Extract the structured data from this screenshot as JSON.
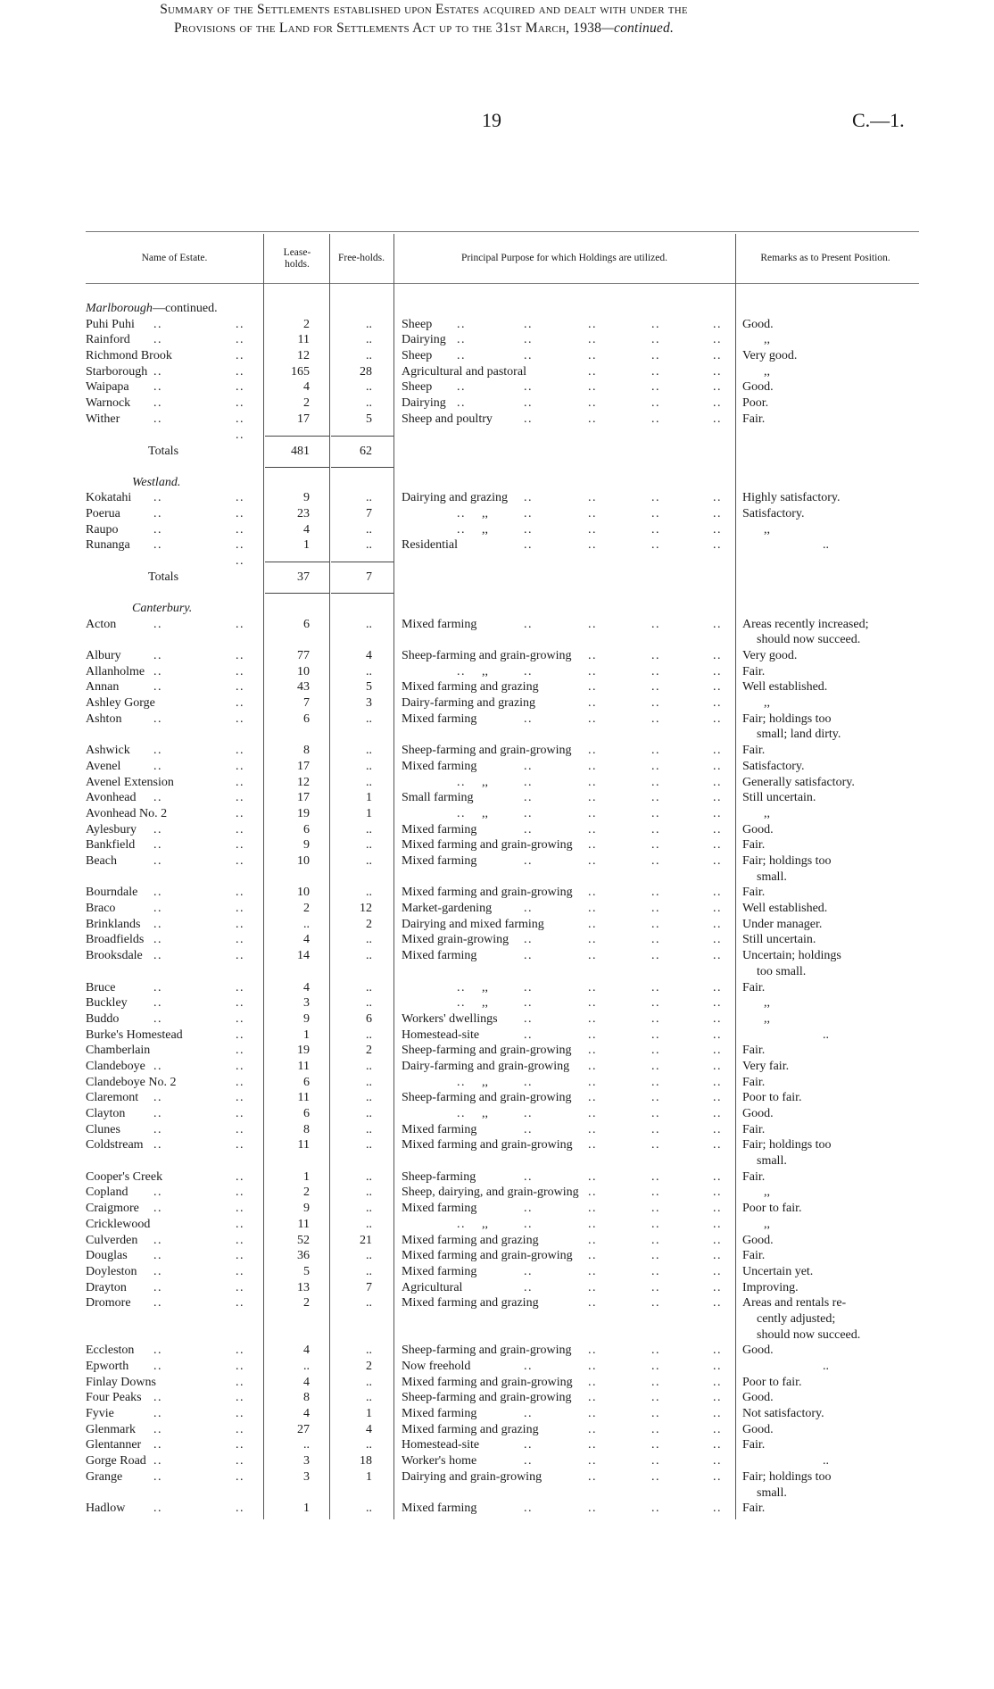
{
  "header": {
    "page_number": "19",
    "document_code": "C.—1."
  },
  "title": {
    "line1": "Summary of the Settlements established upon Estates acquired and dealt with under the",
    "line2": "Provisions of the Land for Settlements Act up to the 31st March, 1938",
    "line2_suffix": "—continued."
  },
  "columns": {
    "name": "Name of Estate.",
    "leaseholds": "Lease-holds.",
    "freeholds": "Free-holds.",
    "purpose": "Principal Purpose for which Holdings are utilized.",
    "remarks": "Remarks as to Present Position."
  },
  "rows": [
    {
      "type": "section",
      "label": "Marlborough",
      "suffix": "—continued."
    },
    {
      "name": "Puhi Puhi",
      "lease": "2",
      "free": "..",
      "purpose": "Sheep",
      "remarks": [
        "Good."
      ]
    },
    {
      "name": "Rainford",
      "lease": "11",
      "free": "..",
      "purpose": "Dairying",
      "remarks": [
        ",,"
      ]
    },
    {
      "name": "Richmond Brook",
      "lease": "12",
      "free": "..",
      "purpose": "Sheep",
      "remarks": [
        "Very good."
      ]
    },
    {
      "name": "Starborough",
      "lease": "165",
      "free": "28",
      "purpose": "Agricultural and pastoral",
      "remarks": [
        ",,"
      ]
    },
    {
      "name": "Waipapa",
      "lease": "4",
      "free": "..",
      "purpose": "Sheep",
      "remarks": [
        "Good."
      ]
    },
    {
      "name": "Warnock",
      "lease": "2",
      "free": "..",
      "purpose": "Dairying",
      "remarks": [
        "Poor."
      ]
    },
    {
      "name": "Wither",
      "lease": "17",
      "free": "5",
      "purpose": "Sheep and poultry",
      "remarks": [
        "Fair."
      ]
    },
    {
      "type": "totals",
      "name": "Totals",
      "lease": "481",
      "free": "62"
    },
    {
      "type": "section",
      "label": "Westland."
    },
    {
      "name": "Kokatahi",
      "lease": "9",
      "free": "..",
      "purpose": "Dairying and grazing",
      "remarks": [
        "Highly satisfactory."
      ]
    },
    {
      "name": "Poerua",
      "lease": "23",
      "free": "7",
      "purpose": ",,",
      "remarks": [
        "Satisfactory."
      ]
    },
    {
      "name": "Raupo",
      "lease": "4",
      "free": "..",
      "purpose": ",,",
      "remarks": [
        ",,"
      ]
    },
    {
      "name": "Runanga",
      "lease": "1",
      "free": "..",
      "purpose": "Residential",
      "remarks": [
        ".."
      ]
    },
    {
      "type": "totals",
      "name": "Totals",
      "lease": "37",
      "free": "7"
    },
    {
      "type": "section",
      "label": "Canterbury."
    },
    {
      "name": "Acton",
      "lease": "6",
      "free": "..",
      "purpose": "Mixed farming",
      "remarks": [
        "Areas recently increased;",
        "should now succeed."
      ]
    },
    {
      "name": "Albury",
      "lease": "77",
      "free": "4",
      "purpose": "Sheep-farming and grain-growing",
      "remarks": [
        "Very good."
      ]
    },
    {
      "name": "Allanholme",
      "lease": "10",
      "free": "..",
      "purpose": ",,",
      "remarks": [
        "Fair."
      ]
    },
    {
      "name": "Annan",
      "lease": "43",
      "free": "5",
      "purpose": "Mixed farming and grazing",
      "remarks": [
        "Well established."
      ]
    },
    {
      "name": "Ashley Gorge",
      "lease": "7",
      "free": "3",
      "purpose": "Dairy-farming and grazing",
      "remarks": [
        ",,"
      ]
    },
    {
      "name": "Ashton",
      "lease": "6",
      "free": "..",
      "purpose": "Mixed farming",
      "remarks": [
        "Fair; holdings too",
        "small; land dirty."
      ]
    },
    {
      "name": "Ashwick",
      "lease": "8",
      "free": "..",
      "purpose": "Sheep-farming and grain-growing",
      "remarks": [
        "Fair."
      ]
    },
    {
      "name": "Avenel",
      "lease": "17",
      "free": "..",
      "purpose": "Mixed farming",
      "remarks": [
        "Satisfactory."
      ]
    },
    {
      "name": "Avenel Extension",
      "lease": "12",
      "free": "..",
      "purpose": ",,",
      "remarks": [
        "Generally satisfactory."
      ]
    },
    {
      "name": "Avonhead",
      "lease": "17",
      "free": "1",
      "purpose": "Small farming",
      "remarks": [
        "Still uncertain."
      ]
    },
    {
      "name": "Avonhead No. 2",
      "lease": "19",
      "free": "1",
      "purpose": ",,",
      "remarks": [
        ",,"
      ]
    },
    {
      "name": "Aylesbury",
      "lease": "6",
      "free": "..",
      "purpose": "Mixed farming",
      "remarks": [
        "Good."
      ]
    },
    {
      "name": "Bankfield",
      "lease": "9",
      "free": "..",
      "purpose": "Mixed farming and grain-growing",
      "remarks": [
        "Fair."
      ]
    },
    {
      "name": "Beach",
      "lease": "10",
      "free": "..",
      "purpose": "Mixed farming",
      "remarks": [
        "Fair; holdings too",
        "small."
      ]
    },
    {
      "name": "Bourndale",
      "lease": "10",
      "free": "..",
      "purpose": "Mixed farming and grain-growing",
      "remarks": [
        "Fair."
      ]
    },
    {
      "name": "Braco",
      "lease": "2",
      "free": "12",
      "purpose": "Market-gardening",
      "remarks": [
        "Well established."
      ]
    },
    {
      "name": "Brinklands",
      "lease": "..",
      "free": "2",
      "purpose": "Dairying and mixed farming",
      "remarks": [
        "Under manager."
      ]
    },
    {
      "name": "Broadfields",
      "lease": "4",
      "free": "..",
      "purpose": "Mixed grain-growing",
      "remarks": [
        "Still uncertain."
      ]
    },
    {
      "name": "Brooksdale",
      "lease": "14",
      "free": "..",
      "purpose": "Mixed farming",
      "remarks": [
        "Uncertain; holdings",
        "too small."
      ]
    },
    {
      "name": "Bruce",
      "lease": "4",
      "free": "..",
      "purpose": ",,",
      "remarks": [
        "Fair."
      ]
    },
    {
      "name": "Buckley",
      "lease": "3",
      "free": "..",
      "purpose": ",,",
      "remarks": [
        ",,"
      ]
    },
    {
      "name": "Buddo",
      "lease": "9",
      "free": "6",
      "purpose": "Workers' dwellings",
      "remarks": [
        ",,"
      ]
    },
    {
      "name": "Burke's Homestead",
      "lease": "1",
      "free": "..",
      "purpose": "Homestead-site",
      "remarks": [
        ".."
      ]
    },
    {
      "name": "Chamberlain",
      "lease": "19",
      "free": "2",
      "purpose": "Sheep-farming and grain-growing",
      "remarks": [
        "Fair."
      ]
    },
    {
      "name": "Clandeboye",
      "lease": "11",
      "free": "..",
      "purpose": "Dairy-farming and grain-growing",
      "remarks": [
        "Very fair."
      ]
    },
    {
      "name": "Clandeboye No. 2",
      "lease": "6",
      "free": "..",
      "purpose": ",,",
      "remarks": [
        "Fair."
      ]
    },
    {
      "name": "Claremont",
      "lease": "11",
      "free": "..",
      "purpose": "Sheep-farming and grain-growing",
      "remarks": [
        "Poor to fair."
      ]
    },
    {
      "name": "Clayton",
      "lease": "6",
      "free": "..",
      "purpose": ",,",
      "remarks": [
        "Good."
      ]
    },
    {
      "name": "Clunes",
      "lease": "8",
      "free": "..",
      "purpose": "Mixed farming",
      "remarks": [
        "Fair."
      ]
    },
    {
      "name": "Coldstream",
      "lease": "11",
      "free": "..",
      "purpose": "Mixed farming and grain-growing",
      "remarks": [
        "Fair; holdings too",
        "small."
      ]
    },
    {
      "name": "Cooper's Creek",
      "lease": "1",
      "free": "..",
      "purpose": "Sheep-farming",
      "remarks": [
        "Fair."
      ]
    },
    {
      "name": "Copland",
      "lease": "2",
      "free": "..",
      "purpose": "Sheep, dairying, and grain-growing",
      "remarks": [
        ",,"
      ]
    },
    {
      "name": "Craigmore",
      "lease": "9",
      "free": "..",
      "purpose": "Mixed farming",
      "remarks": [
        "Poor to fair."
      ]
    },
    {
      "name": "Cricklewood",
      "lease": "11",
      "free": "..",
      "purpose": ",,",
      "remarks": [
        ",,"
      ]
    },
    {
      "name": "Culverden",
      "lease": "52",
      "free": "21",
      "purpose": "Mixed farming and grazing",
      "remarks": [
        "Good."
      ]
    },
    {
      "name": "Douglas",
      "lease": "36",
      "free": "..",
      "purpose": "Mixed farming and grain-growing",
      "remarks": [
        "Fair."
      ]
    },
    {
      "name": "Doyleston",
      "lease": "5",
      "free": "..",
      "purpose": "Mixed farming",
      "remarks": [
        "Uncertain yet."
      ]
    },
    {
      "name": "Drayton",
      "lease": "13",
      "free": "7",
      "purpose": "Agricultural",
      "remarks": [
        "Improving."
      ]
    },
    {
      "name": "Dromore",
      "lease": "2",
      "free": "..",
      "purpose": "Mixed farming and grazing",
      "remarks": [
        "Areas and rentals re-",
        "cently adjusted;",
        "should now succeed."
      ]
    },
    {
      "name": "Eccleston",
      "lease": "4",
      "free": "..",
      "purpose": "Sheep-farming and grain-growing",
      "remarks": [
        "Good."
      ]
    },
    {
      "name": "Epworth",
      "lease": "..",
      "free": "2",
      "purpose": "Now freehold",
      "remarks": [
        ".."
      ]
    },
    {
      "name": "Finlay Downs",
      "lease": "4",
      "free": "..",
      "purpose": "Mixed farming and grain-growing",
      "remarks": [
        "Poor to fair."
      ]
    },
    {
      "name": "Four Peaks",
      "lease": "8",
      "free": "..",
      "purpose": "Sheep-farming and grain-growing",
      "remarks": [
        "Good."
      ]
    },
    {
      "name": "Fyvie",
      "lease": "4",
      "free": "1",
      "purpose": "Mixed farming",
      "remarks": [
        "Not satisfactory."
      ]
    },
    {
      "name": "Glenmark",
      "lease": "27",
      "free": "4",
      "purpose": "Mixed farming and grazing",
      "remarks": [
        "Good."
      ]
    },
    {
      "name": "Glentanner",
      "lease": "..",
      "free": "..",
      "purpose": "Homestead-site",
      "remarks": [
        "Fair."
      ]
    },
    {
      "name": "Gorge Road",
      "lease": "3",
      "free": "18",
      "purpose": "Worker's home",
      "remarks": [
        ".."
      ]
    },
    {
      "name": "Grange",
      "lease": "3",
      "free": "1",
      "purpose": "Dairying and grain-growing",
      "remarks": [
        "Fair; holdings too",
        "small."
      ]
    },
    {
      "name": "Hadlow",
      "lease": "1",
      "free": "..",
      "purpose": "Mixed farming",
      "remarks": [
        "Fair."
      ]
    }
  ]
}
